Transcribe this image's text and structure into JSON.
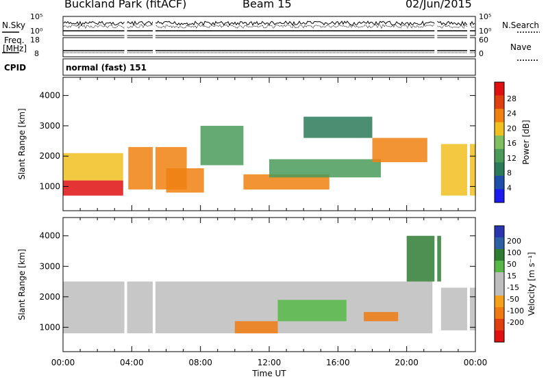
{
  "header": {
    "station": "Buckland Park (fitACF)",
    "beam": "Beam 15",
    "date": "02/Jun/2015"
  },
  "status_panels": {
    "nsky": {
      "label": "N.Sky",
      "ticks": [
        "10^5",
        "10^0"
      ]
    },
    "nsearch": {
      "label": "N.Search",
      "ticks": [
        "10^5",
        "10^0"
      ]
    },
    "freq": {
      "label": "Freq.",
      "unit": "[MHz]",
      "ticks": [
        "18",
        "8"
      ]
    },
    "nave": {
      "label": "Nave",
      "ticks": [
        "60",
        "0"
      ]
    },
    "cpid": {
      "label": "CPID",
      "value": "normal (fast) 151"
    }
  },
  "colors": {
    "power_scale": [
      "#1b1bf0",
      "#1f4fa8",
      "#2b7b5a",
      "#4a9a5a",
      "#7fbf5f",
      "#f0c020",
      "#f08010",
      "#e04010",
      "#e01010"
    ],
    "velocity_scale": [
      "#2a35b0",
      "#2c5fa3",
      "#2e7d32",
      "#57b847",
      "#bdbdbd",
      "#bdbdbd",
      "#f3a01a",
      "#f07a10",
      "#e04010",
      "#e01010"
    ]
  },
  "chart_data": [
    {
      "type": "heatmap",
      "panel": "power",
      "ylabel": "Slant Range [km]",
      "yticks": [
        "1000",
        "2000",
        "3000",
        "4000"
      ],
      "ylim": [
        200,
        4600
      ],
      "x_ticks": [
        "00:00",
        "04:00",
        "08:00",
        "12:00",
        "16:00",
        "20:00",
        "00:00"
      ],
      "xlabel": "Time UT",
      "colorbar": {
        "label": "Power [dB]",
        "ticks": [
          "28",
          "24",
          "20",
          "16",
          "12",
          "8",
          "4"
        ]
      },
      "regions": [
        {
          "t0": 0.0,
          "t1": 3.5,
          "r0": 700,
          "r1": 1200,
          "value": 28
        },
        {
          "t0": 0.0,
          "t1": 3.5,
          "r0": 1200,
          "r1": 2100,
          "value": 18
        },
        {
          "t0": 3.8,
          "t1": 7.2,
          "r0": 900,
          "r1": 2300,
          "value": 22
        },
        {
          "t0": 6.0,
          "t1": 8.2,
          "r0": 800,
          "r1": 1600,
          "value": 24
        },
        {
          "t0": 8.0,
          "t1": 10.5,
          "r0": 1700,
          "r1": 3000,
          "value": 14
        },
        {
          "t0": 10.5,
          "t1": 15.5,
          "r0": 900,
          "r1": 1400,
          "value": 24
        },
        {
          "t0": 12.0,
          "t1": 18.5,
          "r0": 1300,
          "r1": 1900,
          "value": 14
        },
        {
          "t0": 14.0,
          "t1": 18.0,
          "r0": 2600,
          "r1": 3300,
          "value": 10
        },
        {
          "t0": 18.0,
          "t1": 21.2,
          "r0": 1800,
          "r1": 2600,
          "value": 24
        },
        {
          "t0": 22.0,
          "t1": 24.0,
          "r0": 700,
          "r1": 2400,
          "value": 20
        }
      ]
    },
    {
      "type": "heatmap",
      "panel": "velocity",
      "ylabel": "Slant Range [km]",
      "yticks": [
        "1000",
        "2000",
        "3000",
        "4000"
      ],
      "ylim": [
        200,
        4600
      ],
      "x_ticks": [
        "00:00",
        "04:00",
        "08:00",
        "12:00",
        "16:00",
        "20:00",
        "00:00"
      ],
      "xlabel": "Time UT",
      "colorbar": {
        "label": "Velocity [m s^-1]",
        "ticks": [
          "200",
          "100",
          "50",
          "15",
          "-15",
          "-50",
          "-100",
          "-200"
        ]
      },
      "regions": [
        {
          "t0": 0.0,
          "t1": 21.5,
          "r0": 800,
          "r1": 2500,
          "value": 0
        },
        {
          "t0": 12.5,
          "t1": 16.5,
          "r0": 1200,
          "r1": 1900,
          "value": 30
        },
        {
          "t0": 10.0,
          "t1": 12.5,
          "r0": 800,
          "r1": 1200,
          "value": -60
        },
        {
          "t0": 17.5,
          "t1": 19.5,
          "r0": 1200,
          "r1": 1500,
          "value": -60
        },
        {
          "t0": 20.0,
          "t1": 22.0,
          "r0": 2500,
          "r1": 4000,
          "value": 60
        },
        {
          "t0": 22.0,
          "t1": 24.0,
          "r0": 900,
          "r1": 2300,
          "value": 10
        }
      ]
    }
  ]
}
